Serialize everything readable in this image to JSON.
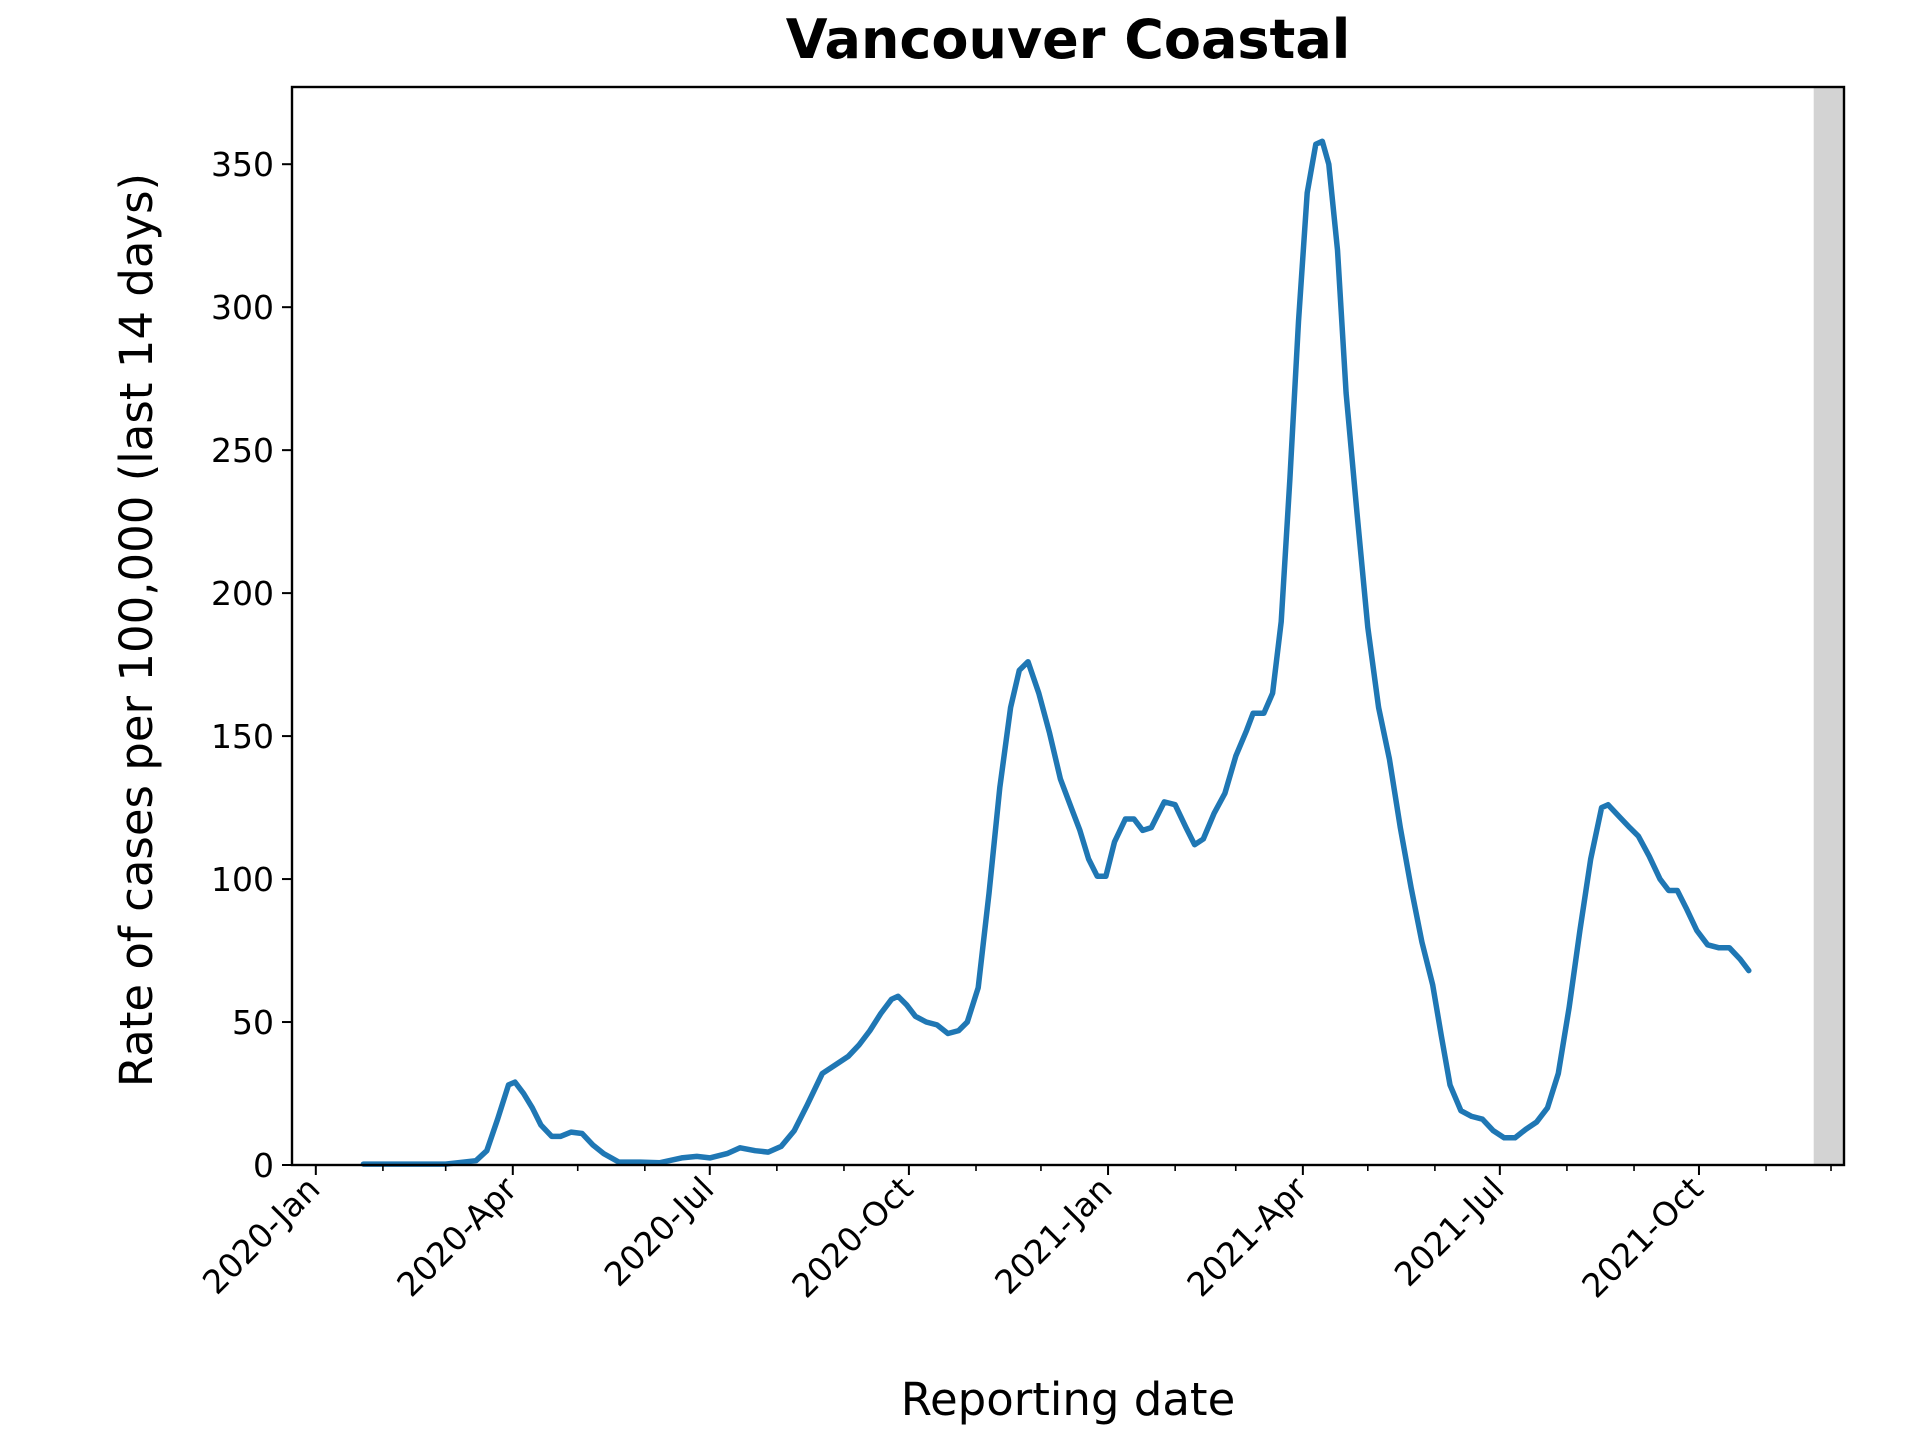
{
  "chart_data": {
    "type": "line",
    "title": "Vancouver Coastal",
    "xlabel": "Reporting date",
    "ylabel": "Rate of cases per 100,000 (last 14 days)",
    "xlim": [
      "2019-12-21",
      "2021-12-07"
    ],
    "ylim": [
      0,
      377
    ],
    "yticks": [
      0,
      50,
      100,
      150,
      200,
      250,
      300,
      350
    ],
    "xticks": [
      {
        "date": "2020-01-01",
        "label": "2020-Jan"
      },
      {
        "date": "2020-04-01",
        "label": "2020-Apr"
      },
      {
        "date": "2020-07-01",
        "label": "2020-Jul"
      },
      {
        "date": "2020-10-01",
        "label": "2020-Oct"
      },
      {
        "date": "2021-01-01",
        "label": "2021-Jan"
      },
      {
        "date": "2021-04-01",
        "label": "2021-Apr"
      },
      {
        "date": "2021-07-01",
        "label": "2021-Jul"
      },
      {
        "date": "2021-10-01",
        "label": "2021-Oct"
      }
    ],
    "grid": false,
    "shaded_region": {
      "start": "2021-11-23",
      "end": "2021-12-09",
      "color": "#d3d3d3"
    },
    "series": [
      {
        "color": "#1f77b4",
        "points": [
          [
            "2020-01-23",
            0.3
          ],
          [
            "2020-02-10",
            0.3
          ],
          [
            "2020-03-01",
            0.3
          ],
          [
            "2020-03-15",
            1.5
          ],
          [
            "2020-03-20",
            5
          ],
          [
            "2020-03-25",
            16
          ],
          [
            "2020-03-30",
            28
          ],
          [
            "2020-04-02",
            29
          ],
          [
            "2020-04-06",
            25
          ],
          [
            "2020-04-10",
            20
          ],
          [
            "2020-04-14",
            14
          ],
          [
            "2020-04-19",
            10
          ],
          [
            "2020-04-23",
            10
          ],
          [
            "2020-04-28",
            11.5
          ],
          [
            "2020-05-03",
            11
          ],
          [
            "2020-05-08",
            7
          ],
          [
            "2020-05-13",
            4
          ],
          [
            "2020-05-20",
            1
          ],
          [
            "2020-05-30",
            1
          ],
          [
            "2020-06-08",
            0.8
          ],
          [
            "2020-06-18",
            2.5
          ],
          [
            "2020-06-25",
            3
          ],
          [
            "2020-07-01",
            2.5
          ],
          [
            "2020-07-09",
            4
          ],
          [
            "2020-07-15",
            6
          ],
          [
            "2020-07-22",
            5
          ],
          [
            "2020-07-28",
            4.5
          ],
          [
            "2020-08-03",
            6.5
          ],
          [
            "2020-08-09",
            12
          ],
          [
            "2020-08-15",
            21
          ],
          [
            "2020-08-22",
            32
          ],
          [
            "2020-08-28",
            35
          ],
          [
            "2020-09-03",
            38
          ],
          [
            "2020-09-08",
            42
          ],
          [
            "2020-09-13",
            47
          ],
          [
            "2020-09-18",
            53
          ],
          [
            "2020-09-23",
            58
          ],
          [
            "2020-09-26",
            59
          ],
          [
            "2020-09-30",
            56
          ],
          [
            "2020-10-04",
            52
          ],
          [
            "2020-10-09",
            50
          ],
          [
            "2020-10-14",
            49
          ],
          [
            "2020-10-19",
            46
          ],
          [
            "2020-10-24",
            47
          ],
          [
            "2020-10-28",
            50
          ],
          [
            "2020-11-02",
            62
          ],
          [
            "2020-11-07",
            95
          ],
          [
            "2020-11-12",
            132
          ],
          [
            "2020-11-17",
            160
          ],
          [
            "2020-11-21",
            173
          ],
          [
            "2020-11-25",
            176
          ],
          [
            "2020-11-30",
            165
          ],
          [
            "2020-12-05",
            151
          ],
          [
            "2020-12-10",
            135
          ],
          [
            "2020-12-15",
            125
          ],
          [
            "2020-12-19",
            117
          ],
          [
            "2020-12-23",
            107
          ],
          [
            "2020-12-27",
            101
          ],
          [
            "2020-12-31",
            101
          ],
          [
            "2021-01-04",
            113
          ],
          [
            "2021-01-09",
            121
          ],
          [
            "2021-01-13",
            121
          ],
          [
            "2021-01-17",
            117
          ],
          [
            "2021-01-21",
            118
          ],
          [
            "2021-01-27",
            127
          ],
          [
            "2021-02-01",
            126
          ],
          [
            "2021-02-06",
            118
          ],
          [
            "2021-02-10",
            112
          ],
          [
            "2021-02-14",
            114
          ],
          [
            "2021-02-19",
            123
          ],
          [
            "2021-02-24",
            130
          ],
          [
            "2021-03-01",
            143
          ],
          [
            "2021-03-06",
            152
          ],
          [
            "2021-03-09",
            158
          ],
          [
            "2021-03-14",
            158
          ],
          [
            "2021-03-18",
            165
          ],
          [
            "2021-03-22",
            190
          ],
          [
            "2021-03-26",
            240
          ],
          [
            "2021-03-30",
            295
          ],
          [
            "2021-04-03",
            340
          ],
          [
            "2021-04-07",
            357
          ],
          [
            "2021-04-10",
            358
          ],
          [
            "2021-04-13",
            350
          ],
          [
            "2021-04-17",
            320
          ],
          [
            "2021-04-21",
            270
          ],
          [
            "2021-04-26",
            228
          ],
          [
            "2021-05-01",
            188
          ],
          [
            "2021-05-06",
            160
          ],
          [
            "2021-05-11",
            142
          ],
          [
            "2021-05-16",
            118
          ],
          [
            "2021-05-21",
            97
          ],
          [
            "2021-05-26",
            78
          ],
          [
            "2021-05-31",
            63
          ],
          [
            "2021-06-04",
            45
          ],
          [
            "2021-06-08",
            28
          ],
          [
            "2021-06-13",
            19
          ],
          [
            "2021-06-18",
            17
          ],
          [
            "2021-06-23",
            16
          ],
          [
            "2021-06-28",
            12
          ],
          [
            "2021-07-03",
            9.5
          ],
          [
            "2021-07-08",
            9.5
          ],
          [
            "2021-07-13",
            12.5
          ],
          [
            "2021-07-18",
            15
          ],
          [
            "2021-07-23",
            20
          ],
          [
            "2021-07-28",
            32
          ],
          [
            "2021-08-02",
            55
          ],
          [
            "2021-08-07",
            82
          ],
          [
            "2021-08-12",
            107
          ],
          [
            "2021-08-17",
            125
          ],
          [
            "2021-08-20",
            126
          ],
          [
            "2021-08-25",
            122
          ],
          [
            "2021-08-30",
            118
          ],
          [
            "2021-09-03",
            115
          ],
          [
            "2021-09-08",
            108
          ],
          [
            "2021-09-13",
            100
          ],
          [
            "2021-09-17",
            96
          ],
          [
            "2021-09-21",
            96
          ],
          [
            "2021-09-25",
            90
          ],
          [
            "2021-09-30",
            82
          ],
          [
            "2021-10-05",
            77
          ],
          [
            "2021-10-10",
            76
          ],
          [
            "2021-10-15",
            76
          ],
          [
            "2021-10-20",
            72
          ],
          [
            "2021-10-24",
            68
          ]
        ]
      }
    ]
  }
}
